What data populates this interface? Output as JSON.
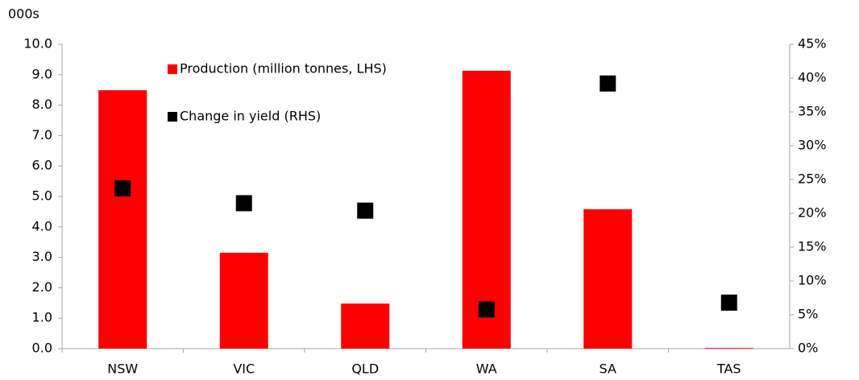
{
  "chart_data": {
    "type": "bar",
    "unit_label": "000s",
    "categories": [
      "NSW",
      "VIC",
      "QLD",
      "WA",
      "SA",
      "TAS"
    ],
    "series": [
      {
        "name": "Production (million tonnes, LHS)",
        "type": "bar",
        "color": "#ff0000",
        "values": [
          8.49,
          3.15,
          1.48,
          9.13,
          4.58,
          0.02
        ]
      },
      {
        "name": "Change in yield (RHS)",
        "type": "scatter",
        "axis": "y2",
        "color": "#000000",
        "values": [
          23.7,
          21.5,
          20.4,
          5.8,
          39.2,
          6.8
        ]
      }
    ],
    "ylim": [
      0,
      10
    ],
    "yticks": [
      {
        "value": 0,
        "label": "0.0"
      },
      {
        "value": 1,
        "label": "1.0"
      },
      {
        "value": 2,
        "label": "2.0"
      },
      {
        "value": 3,
        "label": "3.0"
      },
      {
        "value": 4,
        "label": "4.0"
      },
      {
        "value": 5,
        "label": "5.0"
      },
      {
        "value": 6,
        "label": "6.0"
      },
      {
        "value": 7,
        "label": "7.0"
      },
      {
        "value": 8,
        "label": "8.0"
      },
      {
        "value": 9,
        "label": "9.0"
      },
      {
        "value": 10,
        "label": "10.0"
      }
    ],
    "y2lim": [
      0,
      45
    ],
    "y2ticks": [
      {
        "value": 0,
        "label": "0%"
      },
      {
        "value": 5,
        "label": "5%"
      },
      {
        "value": 10,
        "label": "10%"
      },
      {
        "value": 15,
        "label": "15%"
      },
      {
        "value": 20,
        "label": "20%"
      },
      {
        "value": 25,
        "label": "25%"
      },
      {
        "value": 30,
        "label": "30%"
      },
      {
        "value": 35,
        "label": "35%"
      },
      {
        "value": 40,
        "label": "40%"
      },
      {
        "value": 45,
        "label": "45%"
      }
    ],
    "grid": false,
    "legend": "top-left"
  }
}
